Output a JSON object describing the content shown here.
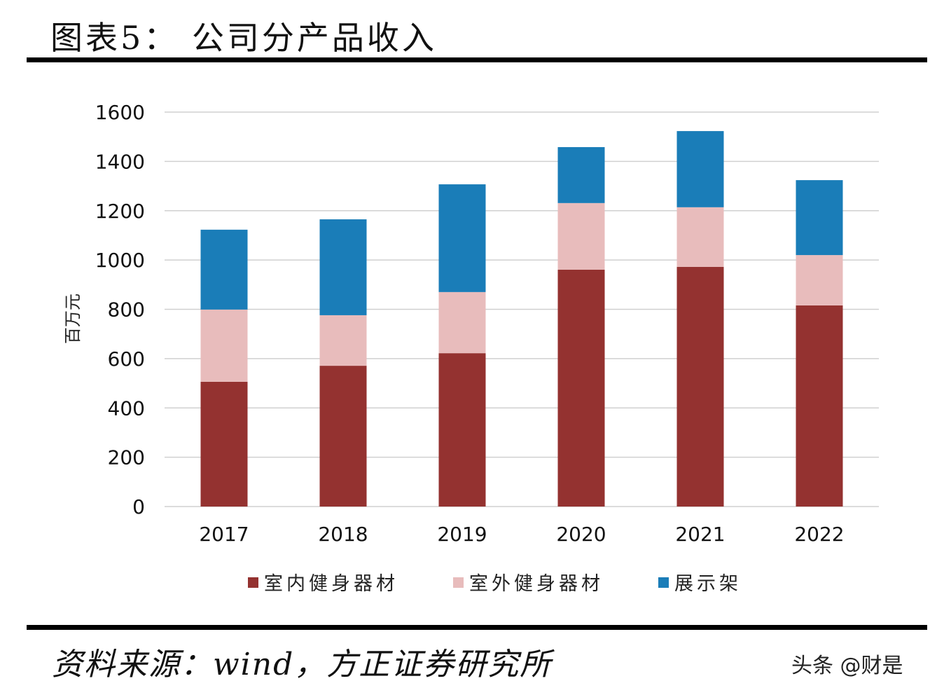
{
  "header": {
    "title": "图表5：  公司分产品收入"
  },
  "footer": {
    "source": "资料来源：wind，方正证券研究所",
    "watermark": "头条 @财是"
  },
  "chart_data": {
    "type": "bar",
    "stacked": true,
    "title": "",
    "xlabel": "",
    "ylabel": "百万元",
    "ylim": [
      0,
      1600
    ],
    "yticks": [
      0,
      200,
      400,
      600,
      800,
      1000,
      1200,
      1400,
      1600
    ],
    "grid": true,
    "legend_position": "bottom",
    "categories": [
      "2017",
      "2018",
      "2019",
      "2020",
      "2021",
      "2022"
    ],
    "series": [
      {
        "name": "室内健身器材",
        "color": "#943230",
        "values": [
          506,
          571,
          622,
          961,
          972,
          816
        ]
      },
      {
        "name": "室外健身器材",
        "color": "#e8bcbc",
        "values": [
          293,
          205,
          248,
          270,
          242,
          204
        ]
      },
      {
        "name": "展示架",
        "color": "#1a7db8",
        "values": [
          324,
          389,
          437,
          227,
          309,
          304
        ]
      }
    ]
  }
}
